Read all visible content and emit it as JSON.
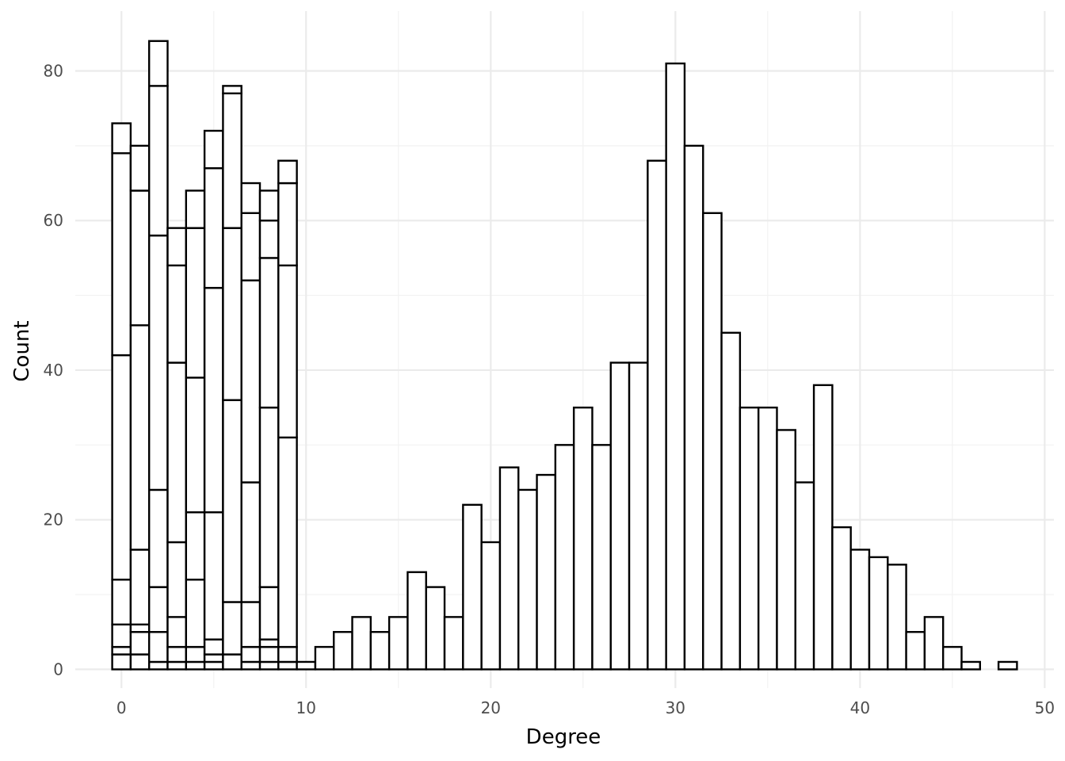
{
  "chart_data": {
    "type": "bar",
    "subtype": "stacked histogram",
    "title": "",
    "xlabel": "Degree",
    "ylabel": "Count",
    "xlim": [
      -2.5,
      50.5
    ],
    "ylim": [
      -2.5,
      88
    ],
    "x_ticks": [
      0,
      10,
      20,
      30,
      40,
      50
    ],
    "y_ticks": [
      0,
      20,
      40,
      60,
      80
    ],
    "grid": true,
    "legend": "none",
    "bin_width": 1,
    "bar_fill": "#ffffff",
    "bar_outline": "#000000",
    "stacked_bins": [
      {
        "x": 0,
        "stack_levels": [
          2,
          3,
          6,
          12,
          42,
          69,
          73
        ]
      },
      {
        "x": 1,
        "stack_levels": [
          2,
          5,
          6,
          16,
          46,
          64,
          70
        ]
      },
      {
        "x": 2,
        "stack_levels": [
          1,
          5,
          11,
          24,
          58,
          78,
          84
        ]
      },
      {
        "x": 3,
        "stack_levels": [
          1,
          3,
          7,
          17,
          41,
          54,
          59
        ]
      },
      {
        "x": 4,
        "stack_levels": [
          1,
          3,
          12,
          21,
          39,
          59,
          64
        ]
      },
      {
        "x": 5,
        "stack_levels": [
          1,
          2,
          4,
          21,
          51,
          67,
          72
        ]
      },
      {
        "x": 6,
        "stack_levels": [
          2,
          9,
          36,
          59,
          77,
          78
        ]
      },
      {
        "x": 7,
        "stack_levels": [
          1,
          3,
          9,
          25,
          52,
          61,
          65
        ]
      },
      {
        "x": 8,
        "stack_levels": [
          1,
          3,
          4,
          11,
          35,
          55,
          60,
          64
        ]
      },
      {
        "x": 9,
        "stack_levels": [
          1,
          3,
          31,
          54,
          65,
          68
        ]
      }
    ],
    "bins": [
      {
        "x": 10,
        "value": 1
      },
      {
        "x": 11,
        "value": 3
      },
      {
        "x": 12,
        "value": 5
      },
      {
        "x": 13,
        "value": 7
      },
      {
        "x": 14,
        "value": 5
      },
      {
        "x": 15,
        "value": 7
      },
      {
        "x": 16,
        "value": 13
      },
      {
        "x": 17,
        "value": 11
      },
      {
        "x": 18,
        "value": 7
      },
      {
        "x": 19,
        "value": 22
      },
      {
        "x": 20,
        "value": 17
      },
      {
        "x": 21,
        "value": 27
      },
      {
        "x": 22,
        "value": 24
      },
      {
        "x": 23,
        "value": 26
      },
      {
        "x": 24,
        "value": 30
      },
      {
        "x": 25,
        "value": 35
      },
      {
        "x": 26,
        "value": 30
      },
      {
        "x": 27,
        "value": 41
      },
      {
        "x": 28,
        "value": 41
      },
      {
        "x": 29,
        "value": 68
      },
      {
        "x": 30,
        "value": 81
      },
      {
        "x": 31,
        "value": 70
      },
      {
        "x": 32,
        "value": 61
      },
      {
        "x": 33,
        "value": 45
      },
      {
        "x": 34,
        "value": 35
      },
      {
        "x": 35,
        "value": 35
      },
      {
        "x": 36,
        "value": 32
      },
      {
        "x": 37,
        "value": 25
      },
      {
        "x": 38,
        "value": 38
      },
      {
        "x": 39,
        "value": 19
      },
      {
        "x": 40,
        "value": 16
      },
      {
        "x": 41,
        "value": 15
      },
      {
        "x": 42,
        "value": 14
      },
      {
        "x": 43,
        "value": 5
      },
      {
        "x": 44,
        "value": 7
      },
      {
        "x": 45,
        "value": 3
      },
      {
        "x": 46,
        "value": 1
      },
      {
        "x": 48,
        "value": 1
      }
    ]
  }
}
